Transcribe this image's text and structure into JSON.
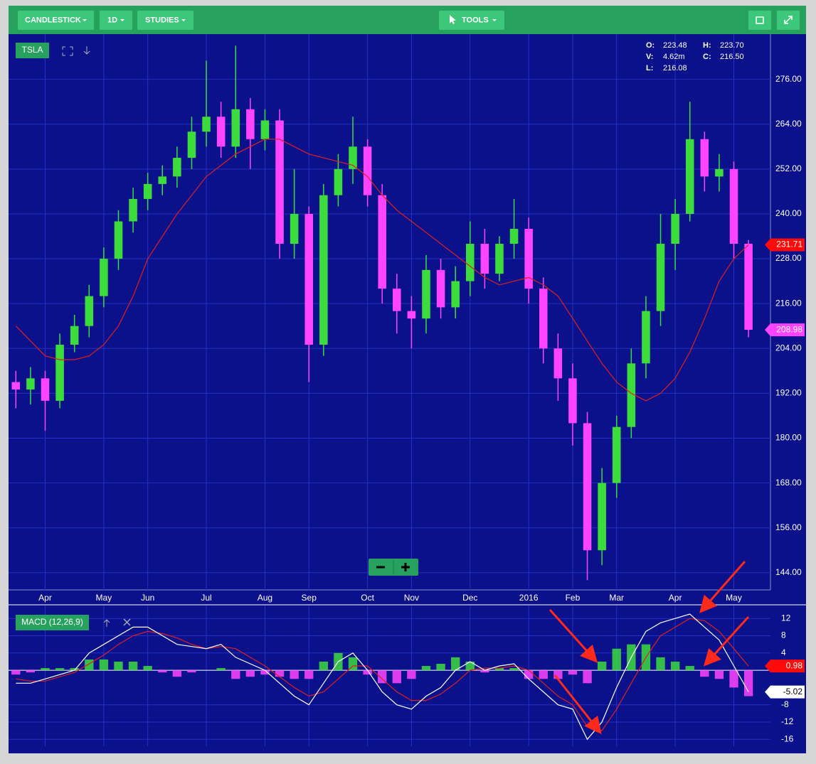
{
  "toolbar": {
    "buttons": [
      "CANDLESTICK",
      "1D",
      "STUDIES",
      "TOOLS"
    ]
  },
  "quote": [
    {
      "label": "O:",
      "value": "223.48"
    },
    {
      "label": "H:",
      "value": "223.70"
    },
    {
      "label": "V:",
      "value": "4.62m"
    },
    {
      "label": "C:",
      "value": "216.50"
    },
    {
      "label": "L:",
      "value": "216.08"
    }
  ],
  "chart_data": [
    {
      "type": "candlestick",
      "title": "TSLA",
      "categories": [
        null,
        null,
        "Apr",
        null,
        null,
        null,
        "May",
        null,
        null,
        "Jun",
        null,
        null,
        null,
        "Jul",
        null,
        null,
        null,
        "Aug",
        null,
        null,
        "Sep",
        null,
        null,
        null,
        "Oct",
        null,
        null,
        "Nov",
        null,
        null,
        null,
        "Dec",
        null,
        null,
        null,
        "2016",
        null,
        null,
        "Feb",
        null,
        null,
        "Mar",
        null,
        null,
        null,
        "Apr",
        null,
        null,
        null,
        "May",
        null
      ],
      "open": [
        195,
        193,
        196,
        190,
        205,
        210,
        218,
        228,
        238,
        244,
        248,
        250,
        255,
        262,
        266,
        258,
        268,
        260,
        265,
        232,
        240,
        205,
        245,
        252,
        258,
        245,
        220,
        214,
        212,
        225,
        215,
        222,
        232,
        224,
        232,
        236,
        220,
        204,
        196,
        184,
        150,
        168,
        183,
        200,
        214,
        232,
        240,
        260,
        250,
        252,
        232
      ],
      "high": [
        198,
        199,
        198,
        208,
        213,
        221,
        231,
        241,
        247,
        251,
        253,
        258,
        266,
        281,
        270,
        285,
        271,
        268,
        268,
        252,
        242,
        248,
        256,
        266,
        260,
        248,
        224,
        218,
        229,
        228,
        226,
        238,
        236,
        234,
        244,
        239,
        223,
        208,
        200,
        187,
        172,
        186,
        204,
        218,
        240,
        244,
        270,
        262,
        256,
        254,
        233
      ],
      "low": [
        188,
        189,
        182,
        188,
        203,
        207,
        215,
        225,
        235,
        241,
        245,
        247,
        252,
        258,
        255,
        255,
        252,
        257,
        228,
        228,
        195,
        202,
        242,
        248,
        242,
        216,
        208,
        204,
        208,
        212,
        212,
        218,
        220,
        222,
        228,
        216,
        200,
        190,
        178,
        142,
        146,
        164,
        180,
        196,
        210,
        225,
        238,
        246,
        246,
        228,
        207
      ],
      "close": [
        193,
        196,
        190,
        205,
        210,
        218,
        228,
        238,
        244,
        248,
        250,
        255,
        262,
        266,
        258,
        268,
        260,
        265,
        232,
        240,
        205,
        245,
        252,
        258,
        245,
        220,
        214,
        212,
        225,
        215,
        222,
        232,
        224,
        232,
        236,
        220,
        204,
        196,
        184,
        150,
        168,
        183,
        200,
        214,
        232,
        240,
        260,
        250,
        252,
        232,
        208.98
      ],
      "up_color": "#3ddc3d",
      "down_color": "#ff44ff",
      "ma": {
        "color": "#e0201e",
        "values": [
          210,
          206,
          202,
          201,
          201,
          202,
          205,
          210,
          218,
          228,
          234,
          240,
          245,
          250,
          253,
          256,
          258,
          260,
          260,
          258,
          256,
          255,
          254,
          253,
          250,
          245,
          241,
          238,
          235,
          232,
          229,
          226,
          223,
          221,
          222,
          223,
          221,
          218,
          212,
          206,
          200,
          195,
          192,
          190,
          192,
          196,
          203,
          212,
          222,
          228,
          231.71
        ]
      },
      "ylim": [
        139.4,
        288.1
      ],
      "yticks": [
        {
          "value": 144,
          "label": "144.00"
        },
        {
          "value": 156,
          "label": "156.00"
        },
        {
          "value": 168,
          "label": "168.00"
        },
        {
          "value": 180,
          "label": "180.00"
        },
        {
          "value": 192,
          "label": "192.00"
        },
        {
          "value": 204,
          "label": "204.00"
        },
        {
          "value": 216,
          "label": "216.00"
        },
        {
          "value": 228,
          "label": "228.00"
        },
        {
          "value": 240,
          "label": "240.00"
        },
        {
          "value": 252,
          "label": "252.00"
        },
        {
          "value": 264,
          "label": "264.00"
        },
        {
          "value": 276,
          "label": "276.00"
        }
      ],
      "grid": true
    },
    {
      "type": "macd",
      "title": "MACD (12,26,9)",
      "macd": {
        "color": "#ffffff",
        "values": [
          -3,
          -3,
          -2,
          -1,
          0,
          4,
          6,
          8,
          10,
          10,
          8,
          6,
          5.5,
          5,
          6,
          3,
          1.5,
          0,
          -3,
          -6,
          -8,
          -3,
          2,
          4,
          0,
          -5,
          -8,
          -9,
          -6,
          -4,
          0,
          2,
          0,
          1,
          1.5,
          -2,
          -5,
          -8,
          -9,
          -16,
          -12,
          -4,
          3,
          9,
          11,
          12,
          13,
          10,
          7,
          1,
          -5.02
        ]
      },
      "signal": {
        "color": "#e0201e",
        "values": [
          -2,
          -2.5,
          -2.5,
          -1.5,
          -0.5,
          1.5,
          3.5,
          6,
          8,
          9,
          8.5,
          7.5,
          6,
          5,
          5.5,
          5,
          3,
          1,
          -1.5,
          -4,
          -6,
          -5,
          -2,
          1,
          1,
          -2,
          -5,
          -7,
          -7,
          -5.5,
          -3,
          0,
          0.5,
          0.5,
          1,
          0,
          -3,
          -6,
          -8,
          -13,
          -14,
          -9,
          -3,
          3,
          8,
          10,
          12,
          11.5,
          9,
          5,
          0.98
        ]
      },
      "histogram": {
        "up_color": "#3ddc3d",
        "down_color": "#ff44ff",
        "values": [
          -1,
          -0.5,
          0.5,
          0.5,
          0.5,
          2.5,
          2.5,
          2,
          2,
          1,
          -0.5,
          -1.5,
          -0.5,
          0,
          0.5,
          -2,
          -1.5,
          -1,
          -1.5,
          -2,
          -2,
          2,
          4,
          3,
          -1,
          -3,
          -3,
          -2,
          1,
          1.5,
          3,
          2,
          -0.5,
          0.5,
          0.5,
          -2,
          -2,
          -2,
          -1,
          -3,
          2,
          5,
          6,
          6,
          3,
          2,
          1,
          -1.5,
          -2,
          -4,
          -6
        ]
      },
      "ylim": [
        -17.6,
        15
      ],
      "yticks": [
        12,
        8,
        4,
        -8,
        -12,
        -16
      ],
      "grid": true
    }
  ]
}
